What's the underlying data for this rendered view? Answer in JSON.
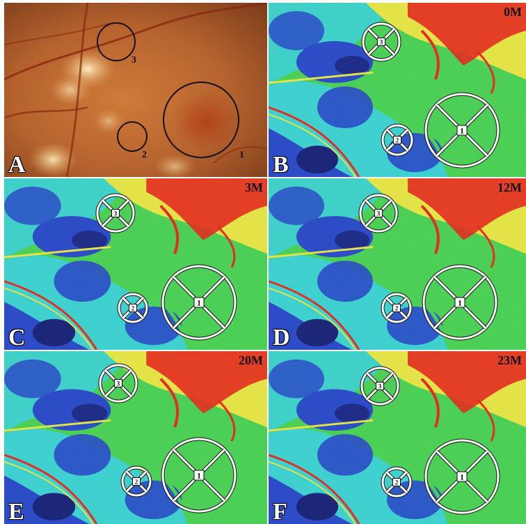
{
  "panels": {
    "a": {
      "letter": "A",
      "circles": [
        "1",
        "2",
        "3"
      ]
    },
    "b": {
      "letter": "B",
      "time": "0M"
    },
    "c": {
      "letter": "C",
      "time": "3M"
    },
    "d": {
      "letter": "D",
      "time": "12M"
    },
    "e": {
      "letter": "E",
      "time": "20M"
    },
    "f": {
      "letter": "F",
      "time": "23M"
    }
  },
  "marker_labels": [
    "1",
    "2",
    "3"
  ],
  "colors": {
    "fundus_base": "#b5622e",
    "map_green": "#3fd24a",
    "map_cyan": "#2fd3e0",
    "map_blue": "#1c3fc8",
    "map_dark_blue": "#0a1570",
    "map_yellow": "#e8e83a",
    "map_red": "#e81c10"
  }
}
